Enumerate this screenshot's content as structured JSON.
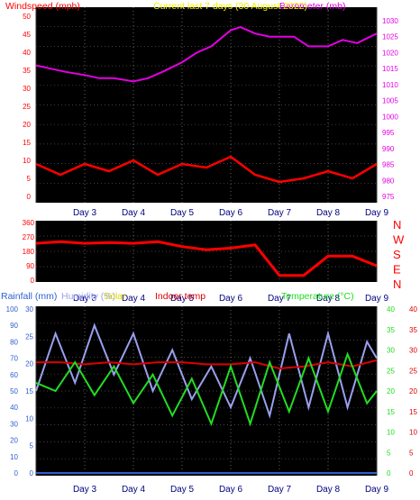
{
  "title": "Current last 7 days (30 August 2022)",
  "colors": {
    "wind": "#ff0000",
    "wind_avg": "#00d000",
    "barometer": "#e400e4",
    "direction": "#ff0000",
    "rain": "#2f5fd0",
    "humidity": "#9aa0ee",
    "solar": "#d7d700",
    "indoor": "#dd0000",
    "temperature": "#22dd22",
    "title": "#f0f000",
    "panel_bg": "#000000"
  },
  "chart_data": [
    {
      "type": "line",
      "labels": {
        "left": "Windspeed (mph)",
        "right": "Barometer (mb)"
      },
      "x_ticks": [
        "Day 3",
        "Day 4",
        "Day 5",
        "Day 6",
        "Day 7",
        "Day 8",
        "Day 9"
      ],
      "y_left": {
        "ticks": [
          "0",
          "5",
          "10",
          "15",
          "20",
          "25",
          "30",
          "35",
          "40",
          "45",
          "50"
        ],
        "range": [
          0,
          50
        ]
      },
      "y_right": {
        "ticks": [
          "975",
          "980",
          "985",
          "990",
          "995",
          "1000",
          "1005",
          "1010",
          "1015",
          "1020",
          "1025",
          "1030"
        ],
        "range": [
          975,
          1030
        ]
      },
      "series": [
        {
          "name": "Windspeed (mph)",
          "axis": "left",
          "x": [
            2.0,
            2.5,
            3.0,
            3.5,
            4.0,
            4.5,
            5.0,
            5.5,
            6.0,
            6.5,
            7.0,
            7.5,
            8.0,
            8.5,
            9.0
          ],
          "values": [
            9,
            6,
            9,
            7,
            10,
            6,
            9,
            8,
            11,
            6,
            4,
            5,
            7,
            5,
            9
          ]
        },
        {
          "name": "Barometer (mb)",
          "axis": "right",
          "x": [
            2.0,
            2.3,
            2.6,
            3.0,
            3.3,
            3.6,
            4.0,
            4.3,
            4.6,
            5.0,
            5.3,
            5.6,
            6.0,
            6.2,
            6.5,
            6.8,
            7.0,
            7.3,
            7.6,
            8.0,
            8.3,
            8.6,
            9.0
          ],
          "values": [
            1016,
            1015,
            1014,
            1013,
            1012,
            1012,
            1011,
            1012,
            1014,
            1017,
            1020,
            1022,
            1027,
            1028,
            1026,
            1025,
            1025,
            1025,
            1022,
            1022,
            1024,
            1023,
            1026
          ]
        }
      ]
    },
    {
      "type": "line",
      "labels": {
        "right": [
          "N",
          "W",
          "S",
          "E",
          "N"
        ]
      },
      "x_ticks": [
        "Day 3",
        "Day 4",
        "Day 5",
        "Day 6",
        "Day 7",
        "Day 8",
        "Day 9"
      ],
      "y_left": {
        "ticks": [
          "0",
          "90",
          "180",
          "270",
          "360"
        ],
        "range": [
          0,
          360
        ]
      },
      "series": [
        {
          "name": "Wind direction",
          "x": [
            2.0,
            2.5,
            3.0,
            3.5,
            4.0,
            4.5,
            5.0,
            5.5,
            6.0,
            6.5,
            7.0,
            7.5,
            8.0,
            8.5,
            9.0
          ],
          "values": [
            230,
            240,
            230,
            235,
            230,
            240,
            210,
            190,
            200,
            220,
            30,
            30,
            150,
            150,
            90
          ]
        }
      ]
    },
    {
      "type": "line",
      "labels": {
        "left": [
          "Rainfall (mm)",
          "Humidity (%)",
          "Solar",
          "Indoor temp"
        ],
        "right": "Temperature (°C)"
      },
      "x_ticks": [
        "Day 3",
        "Day 4",
        "Day 5",
        "Day 6",
        "Day 7",
        "Day 8",
        "Day 9"
      ],
      "y_far_left": {
        "ticks": [
          "0",
          "10",
          "20",
          "30",
          "40",
          "50",
          "60",
          "70",
          "80",
          "90",
          "100"
        ],
        "range": [
          0,
          100
        ]
      },
      "y_left": {
        "ticks": [
          "0",
          "5",
          "10",
          "15",
          "20",
          "25",
          "30"
        ],
        "range": [
          0,
          30
        ]
      },
      "y_right_inner": {
        "ticks": [
          "0",
          "5",
          "10",
          "15",
          "20",
          "25",
          "30",
          "35",
          "40"
        ],
        "range": [
          0,
          40
        ]
      },
      "y_right": {
        "ticks": [
          "0",
          "5",
          "10",
          "15",
          "20",
          "25",
          "30",
          "35",
          "40"
        ],
        "range": [
          0,
          40
        ]
      },
      "series": [
        {
          "name": "Rainfall (mm)",
          "axis": "left",
          "x": [
            2.0,
            9.0
          ],
          "values": [
            0,
            0
          ]
        },
        {
          "name": "Humidity (%)",
          "axis": "far_left",
          "x": [
            2.0,
            2.4,
            2.8,
            3.2,
            3.6,
            4.0,
            4.4,
            4.8,
            5.2,
            5.6,
            6.0,
            6.4,
            6.8,
            7.2,
            7.6,
            8.0,
            8.4,
            8.8,
            9.0
          ],
          "values": [
            50,
            85,
            55,
            90,
            60,
            85,
            50,
            75,
            45,
            65,
            40,
            70,
            35,
            85,
            40,
            85,
            40,
            80,
            70
          ]
        },
        {
          "name": "Indoor temp",
          "axis": "right",
          "x": [
            2.0,
            2.5,
            3.0,
            3.5,
            4.0,
            4.5,
            5.0,
            5.5,
            6.0,
            6.5,
            7.0,
            7.5,
            8.0,
            8.5,
            9.0
          ],
          "values": [
            27,
            27,
            26.5,
            27,
            26.5,
            27,
            27,
            26.5,
            26.5,
            27,
            25.5,
            26,
            27,
            26,
            27.5
          ]
        },
        {
          "name": "Temperature (°C)",
          "axis": "right_inner",
          "x": [
            2.0,
            2.4,
            2.8,
            3.2,
            3.6,
            4.0,
            4.4,
            4.8,
            5.2,
            5.6,
            6.0,
            6.4,
            6.8,
            7.2,
            7.6,
            8.0,
            8.4,
            8.8,
            9.0
          ],
          "values": [
            22,
            20,
            27,
            19,
            26,
            17,
            24,
            14,
            23,
            12,
            26,
            12,
            27,
            15,
            28,
            15,
            29,
            17,
            20
          ]
        }
      ]
    }
  ]
}
